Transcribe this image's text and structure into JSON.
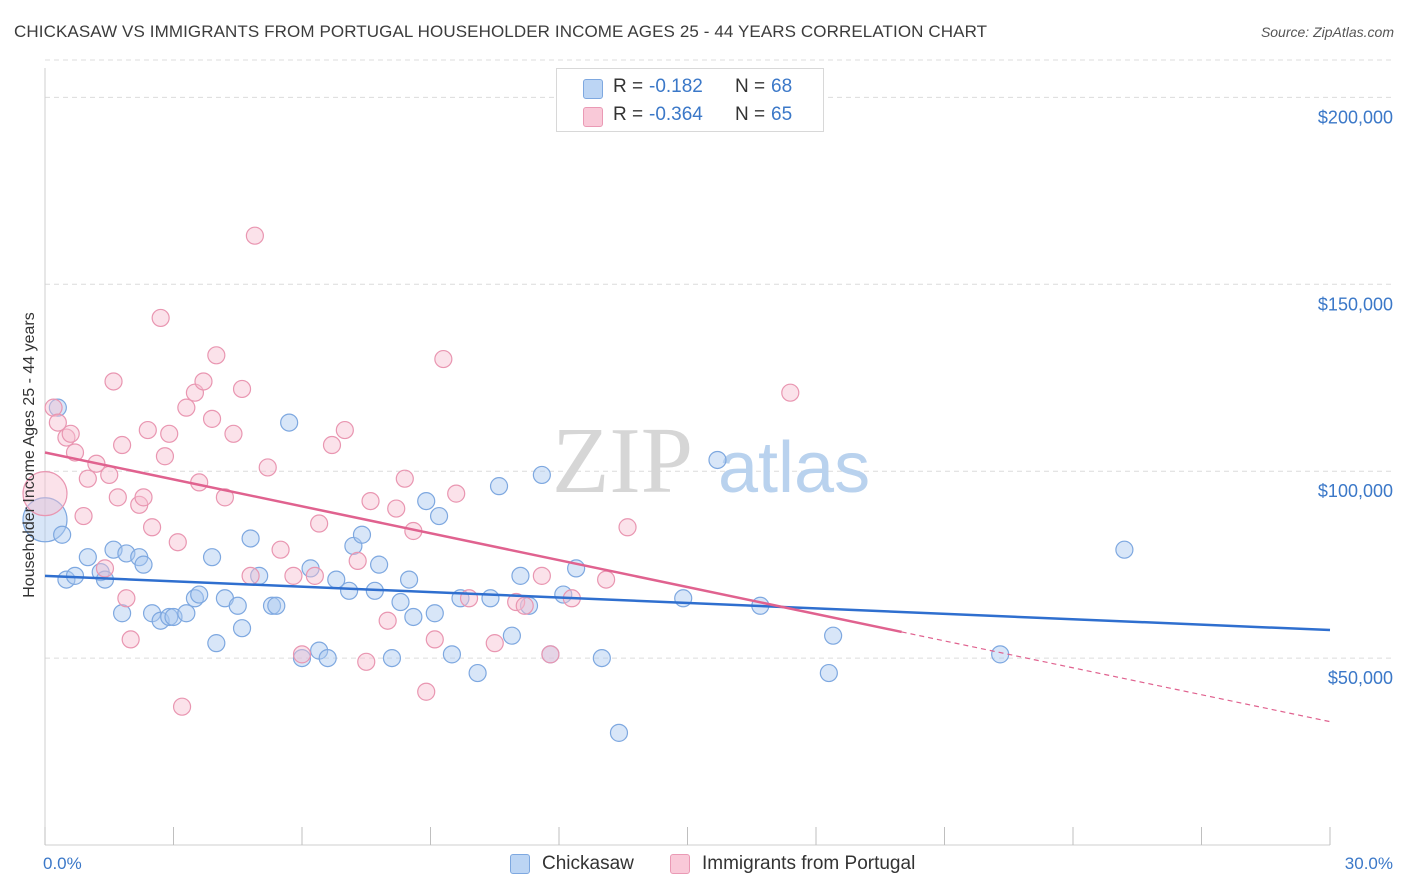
{
  "header": {
    "title": "CHICKASAW VS IMMIGRANTS FROM PORTUGAL HOUSEHOLDER INCOME AGES 25 - 44 YEARS CORRELATION CHART",
    "source": "Source: ZipAtlas.com"
  },
  "legend": {
    "series": [
      {
        "name": "Chickasaw",
        "r_label": "R =",
        "r_value": "-0.182",
        "n_label": "N =",
        "n_value": "68",
        "color": "#a9c8ef",
        "stroke": "#6f9fdc"
      },
      {
        "name": "Immigrants from Portugal",
        "r_label": "R =",
        "r_value": "-0.364",
        "n_label": "N =",
        "n_value": "65",
        "color": "#f7bfd0",
        "stroke": "#e891ad"
      }
    ]
  },
  "watermark": {
    "part1": "ZIP",
    "part2": "atlas"
  },
  "colors": {
    "blue_line": "#2f6fcf",
    "pink_line": "#e0628f",
    "tick_text": "#3b78c8",
    "grid": "#d9d9d9"
  },
  "chart_data": {
    "type": "scatter",
    "title": "CHICKASAW VS IMMIGRANTS FROM PORTUGAL HOUSEHOLDER INCOME AGES 25 - 44 YEARS CORRELATION CHART",
    "xlabel": "",
    "ylabel": "Householder Income Ages 25 - 44 years",
    "xlim": [
      0,
      30
    ],
    "ylim": [
      0,
      210000
    ],
    "x_tick_labels": [
      "0.0%",
      "30.0%"
    ],
    "y_ticks": [
      50000,
      100000,
      150000,
      200000
    ],
    "y_tick_labels": [
      "$50,000",
      "$100,000",
      "$150,000",
      "$200,000"
    ],
    "grid": true,
    "legend_position": "top-center",
    "series": [
      {
        "name": "Chickasaw",
        "trend": {
          "x": [
            0,
            30
          ],
          "y": [
            72000,
            57500
          ]
        },
        "points": [
          [
            0.0,
            87000
          ],
          [
            0.4,
            83000
          ],
          [
            0.5,
            71000
          ],
          [
            0.7,
            72000
          ],
          [
            1.0,
            77000
          ],
          [
            1.3,
            73000
          ],
          [
            1.4,
            71000
          ],
          [
            1.6,
            79000
          ],
          [
            1.8,
            62000
          ],
          [
            1.9,
            78000
          ],
          [
            2.2,
            77000
          ],
          [
            2.3,
            75000
          ],
          [
            2.5,
            62000
          ],
          [
            2.7,
            60000
          ],
          [
            2.9,
            61000
          ],
          [
            3.0,
            61000
          ],
          [
            3.3,
            62000
          ],
          [
            3.5,
            66000
          ],
          [
            3.6,
            67000
          ],
          [
            3.9,
            77000
          ],
          [
            4.0,
            54000
          ],
          [
            4.2,
            66000
          ],
          [
            4.5,
            64000
          ],
          [
            4.6,
            58000
          ],
          [
            4.8,
            82000
          ],
          [
            5.0,
            72000
          ],
          [
            5.3,
            64000
          ],
          [
            5.4,
            64000
          ],
          [
            5.7,
            113000
          ],
          [
            6.0,
            50000
          ],
          [
            6.2,
            74000
          ],
          [
            6.4,
            52000
          ],
          [
            6.6,
            50000
          ],
          [
            6.8,
            71000
          ],
          [
            7.1,
            68000
          ],
          [
            7.2,
            80000
          ],
          [
            7.4,
            83000
          ],
          [
            7.7,
            68000
          ],
          [
            7.8,
            75000
          ],
          [
            8.1,
            50000
          ],
          [
            8.3,
            65000
          ],
          [
            8.5,
            71000
          ],
          [
            8.6,
            61000
          ],
          [
            8.9,
            92000
          ],
          [
            9.1,
            62000
          ],
          [
            9.2,
            88000
          ],
          [
            9.5,
            51000
          ],
          [
            9.7,
            66000
          ],
          [
            10.1,
            46000
          ],
          [
            10.4,
            66000
          ],
          [
            10.6,
            96000
          ],
          [
            10.9,
            56000
          ],
          [
            11.1,
            72000
          ],
          [
            11.3,
            64000
          ],
          [
            11.6,
            99000
          ],
          [
            11.8,
            51000
          ],
          [
            12.1,
            67000
          ],
          [
            12.4,
            74000
          ],
          [
            13.0,
            50000
          ],
          [
            13.4,
            30000
          ],
          [
            14.9,
            66000
          ],
          [
            15.7,
            103000
          ],
          [
            16.7,
            64000
          ],
          [
            18.4,
            56000
          ],
          [
            18.3,
            46000
          ],
          [
            22.3,
            51000
          ],
          [
            25.2,
            79000
          ],
          [
            0.3,
            117000
          ]
        ]
      },
      {
        "name": "Immigrants from Portugal",
        "trend": {
          "x": [
            0,
            20
          ],
          "y": [
            105000,
            57000
          ]
        },
        "trend_dashed": {
          "x": [
            20,
            30
          ],
          "y": [
            57000,
            33000
          ]
        },
        "points": [
          [
            0.0,
            94000
          ],
          [
            0.2,
            117000
          ],
          [
            0.3,
            113000
          ],
          [
            0.5,
            109000
          ],
          [
            0.6,
            110000
          ],
          [
            0.7,
            105000
          ],
          [
            0.9,
            88000
          ],
          [
            1.0,
            98000
          ],
          [
            1.2,
            102000
          ],
          [
            1.4,
            74000
          ],
          [
            1.5,
            99000
          ],
          [
            1.6,
            124000
          ],
          [
            1.7,
            93000
          ],
          [
            1.8,
            107000
          ],
          [
            1.9,
            66000
          ],
          [
            2.0,
            55000
          ],
          [
            2.2,
            91000
          ],
          [
            2.3,
            93000
          ],
          [
            2.4,
            111000
          ],
          [
            2.5,
            85000
          ],
          [
            2.7,
            141000
          ],
          [
            2.8,
            104000
          ],
          [
            2.9,
            110000
          ],
          [
            3.1,
            81000
          ],
          [
            3.2,
            37000
          ],
          [
            3.3,
            117000
          ],
          [
            3.5,
            121000
          ],
          [
            3.6,
            97000
          ],
          [
            3.7,
            124000
          ],
          [
            3.9,
            114000
          ],
          [
            4.0,
            131000
          ],
          [
            4.2,
            93000
          ],
          [
            4.4,
            110000
          ],
          [
            4.6,
            122000
          ],
          [
            4.8,
            72000
          ],
          [
            4.9,
            163000
          ],
          [
            5.2,
            101000
          ],
          [
            5.5,
            79000
          ],
          [
            5.8,
            72000
          ],
          [
            6.0,
            51000
          ],
          [
            6.4,
            86000
          ],
          [
            6.7,
            107000
          ],
          [
            7.0,
            111000
          ],
          [
            7.3,
            76000
          ],
          [
            7.5,
            49000
          ],
          [
            7.6,
            92000
          ],
          [
            8.0,
            60000
          ],
          [
            8.2,
            90000
          ],
          [
            8.4,
            98000
          ],
          [
            8.6,
            84000
          ],
          [
            8.9,
            41000
          ],
          [
            9.1,
            55000
          ],
          [
            9.3,
            130000
          ],
          [
            9.6,
            94000
          ],
          [
            9.9,
            66000
          ],
          [
            10.5,
            54000
          ],
          [
            11.0,
            65000
          ],
          [
            11.2,
            64000
          ],
          [
            11.6,
            72000
          ],
          [
            11.8,
            51000
          ],
          [
            12.3,
            66000
          ],
          [
            13.1,
            71000
          ],
          [
            13.6,
            85000
          ],
          [
            17.4,
            121000
          ],
          [
            6.3,
            72000
          ]
        ]
      }
    ]
  }
}
